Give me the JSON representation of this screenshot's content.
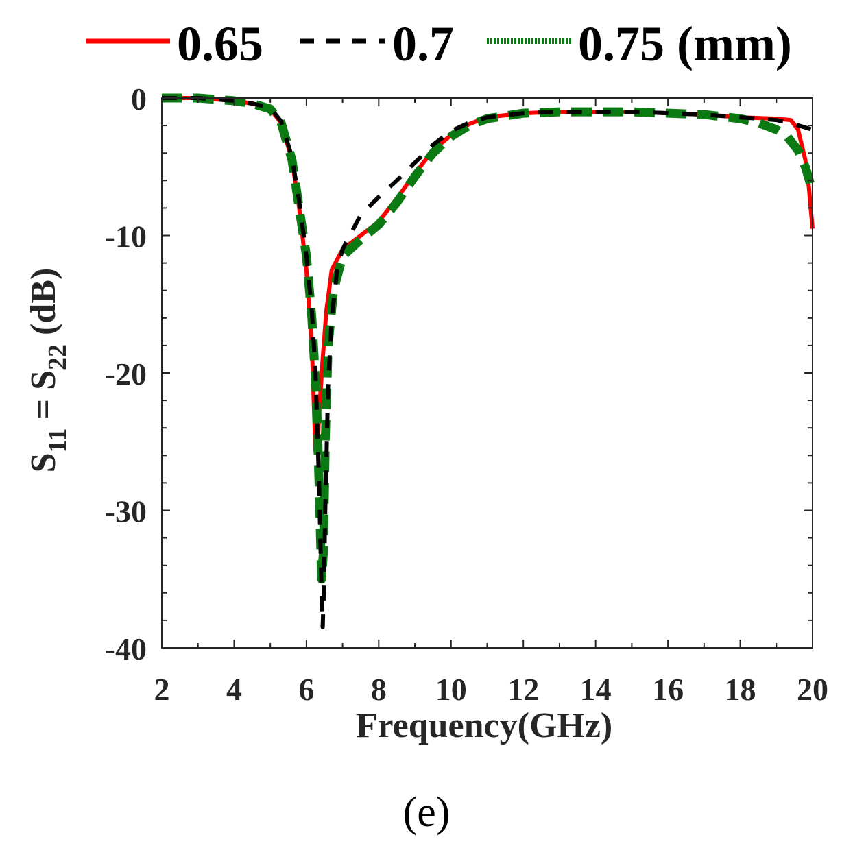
{
  "chart_data": {
    "type": "line",
    "title": "",
    "xlabel": "Frequency(GHz)",
    "ylabel": {
      "s1": "S",
      "sub1": "11",
      "eq": " = S",
      "sub2": "22",
      "unit": " (dB)"
    },
    "caption": "(e)",
    "xlim": [
      2,
      20
    ],
    "ylim": [
      -40,
      0
    ],
    "xticks": [
      2,
      4,
      6,
      8,
      10,
      12,
      14,
      16,
      18,
      20
    ],
    "yticks": [
      0,
      -10,
      -20,
      -30,
      -40
    ],
    "xtick_labels": [
      "2",
      "4",
      "6",
      "8",
      "10",
      "12",
      "14",
      "16",
      "18",
      "20"
    ],
    "ytick_labels": [
      "0",
      "-10",
      "-20",
      "-30",
      "-40"
    ],
    "grid": false,
    "legend": {
      "placement": "top",
      "entries": [
        "0.65",
        "0.7",
        "0.75 (mm)"
      ]
    },
    "series": [
      {
        "name": "0.65",
        "color": "#ff0000",
        "style": "solid",
        "points": [
          [
            2,
            0
          ],
          [
            3,
            0
          ],
          [
            3.5,
            -0.1
          ],
          [
            4,
            -0.2
          ],
          [
            4.5,
            -0.4
          ],
          [
            5,
            -0.8
          ],
          [
            5.3,
            -1.8
          ],
          [
            5.6,
            -4.5
          ],
          [
            5.8,
            -8
          ],
          [
            6,
            -12.5
          ],
          [
            6.15,
            -18
          ],
          [
            6.25,
            -25.7
          ],
          [
            6.3,
            -25.5
          ],
          [
            6.35,
            -23
          ],
          [
            6.45,
            -19
          ],
          [
            6.55,
            -15.5
          ],
          [
            6.7,
            -12.5
          ],
          [
            7,
            -11
          ],
          [
            7.5,
            -10
          ],
          [
            8,
            -9
          ],
          [
            8.5,
            -7.3
          ],
          [
            9,
            -5.5
          ],
          [
            9.5,
            -3.8
          ],
          [
            10,
            -2.7
          ],
          [
            10.5,
            -1.9
          ],
          [
            11,
            -1.4
          ],
          [
            12,
            -1.1
          ],
          [
            13,
            -1.0
          ],
          [
            14,
            -1.0
          ],
          [
            15,
            -1.0
          ],
          [
            16,
            -1.1
          ],
          [
            17,
            -1.2
          ],
          [
            18,
            -1.4
          ],
          [
            19,
            -1.5
          ],
          [
            19.4,
            -1.6
          ],
          [
            19.6,
            -2.3
          ],
          [
            19.8,
            -4.5
          ],
          [
            19.9,
            -6.5
          ],
          [
            20,
            -9.5
          ]
        ]
      },
      {
        "name": "0.7",
        "color": "#000000",
        "style": "dashed",
        "points": [
          [
            2,
            0
          ],
          [
            3,
            0
          ],
          [
            3.5,
            -0.1
          ],
          [
            4,
            -0.2
          ],
          [
            4.5,
            -0.4
          ],
          [
            5,
            -0.7
          ],
          [
            5.3,
            -1.7
          ],
          [
            5.6,
            -4.3
          ],
          [
            5.8,
            -7.5
          ],
          [
            6,
            -11.5
          ],
          [
            6.15,
            -15.5
          ],
          [
            6.25,
            -20
          ],
          [
            6.35,
            -28
          ],
          [
            6.42,
            -36
          ],
          [
            6.45,
            -38.5
          ],
          [
            6.48,
            -36
          ],
          [
            6.52,
            -30
          ],
          [
            6.6,
            -21
          ],
          [
            6.7,
            -16
          ],
          [
            6.85,
            -12.5
          ],
          [
            7,
            -11
          ],
          [
            7.5,
            -8.5
          ],
          [
            8,
            -7.2
          ],
          [
            8.5,
            -6
          ],
          [
            9,
            -4.7
          ],
          [
            9.5,
            -3.4
          ],
          [
            10,
            -2.4
          ],
          [
            10.5,
            -1.8
          ],
          [
            11,
            -1.4
          ],
          [
            12,
            -1.1
          ],
          [
            13,
            -1.0
          ],
          [
            14,
            -1.0
          ],
          [
            15,
            -1.0
          ],
          [
            16,
            -1.1
          ],
          [
            17,
            -1.2
          ],
          [
            18,
            -1.4
          ],
          [
            19,
            -1.6
          ],
          [
            19.5,
            -1.9
          ],
          [
            20,
            -2.3
          ]
        ]
      },
      {
        "name": "0.75 (mm)",
        "color": "#0b7a12",
        "style": "dotted",
        "points": [
          [
            2,
            0
          ],
          [
            3,
            0
          ],
          [
            3.5,
            -0.1
          ],
          [
            4,
            -0.2
          ],
          [
            4.5,
            -0.4
          ],
          [
            5,
            -0.8
          ],
          [
            5.3,
            -1.8
          ],
          [
            5.6,
            -4.5
          ],
          [
            5.8,
            -8
          ],
          [
            6,
            -11.5
          ],
          [
            6.15,
            -16
          ],
          [
            6.28,
            -22
          ],
          [
            6.35,
            -28
          ],
          [
            6.42,
            -35
          ],
          [
            6.47,
            -33
          ],
          [
            6.52,
            -25
          ],
          [
            6.6,
            -18
          ],
          [
            6.75,
            -14
          ],
          [
            7,
            -11.5
          ],
          [
            7.5,
            -10.3
          ],
          [
            8,
            -9.2
          ],
          [
            8.5,
            -7.6
          ],
          [
            9,
            -5.7
          ],
          [
            9.5,
            -4
          ],
          [
            10,
            -2.8
          ],
          [
            10.5,
            -2
          ],
          [
            11,
            -1.5
          ],
          [
            12,
            -1.1
          ],
          [
            13,
            -1.0
          ],
          [
            14,
            -1.0
          ],
          [
            15,
            -1.0
          ],
          [
            16,
            -1.1
          ],
          [
            17,
            -1.2
          ],
          [
            18,
            -1.5
          ],
          [
            18.5,
            -1.8
          ],
          [
            19,
            -2.3
          ],
          [
            19.3,
            -2.8
          ],
          [
            19.6,
            -3.8
          ],
          [
            19.8,
            -5
          ],
          [
            20,
            -6.8
          ]
        ]
      }
    ]
  }
}
